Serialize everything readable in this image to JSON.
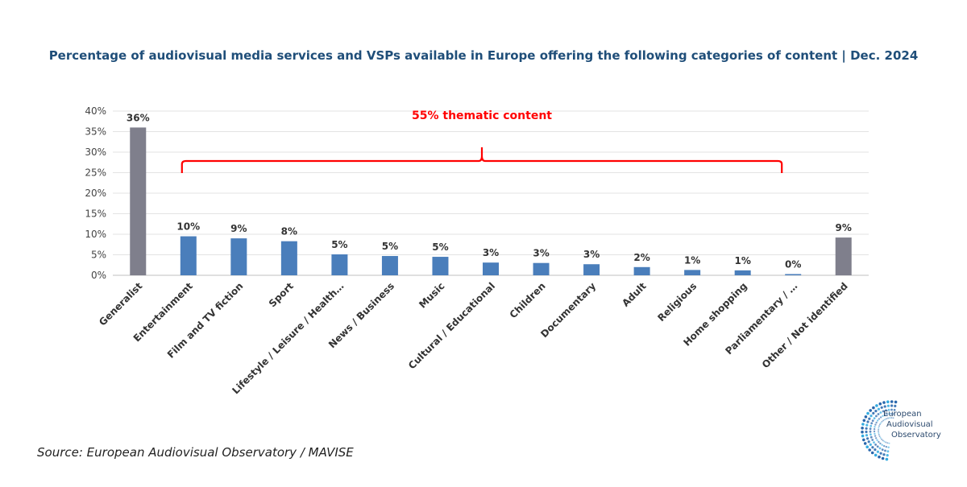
{
  "title": "Percentage of audiovisual media services and VSPs available in Europe offering the following categories of content | Dec. 2024",
  "source": "Source: European Audiovisual Observatory / MAVISE",
  "logo": {
    "line1": "European",
    "line2": "Audiovisual",
    "line3": "Observatory"
  },
  "colors": {
    "generalist": "#7f7f8c",
    "thematic": "#4a7ebb",
    "bracket": "#ff0000",
    "title": "#1f4e79"
  },
  "chart_data": {
    "type": "bar",
    "categories": [
      "Generalist",
      "Entertainment",
      "Film and TV fiction",
      "Sport",
      "Lifestyle / Leisure / Health…",
      "News / Business",
      "Music",
      "Cultural / Educational",
      "Children",
      "Documentary",
      "Adult",
      "Religious",
      "Home shopping",
      "Parliamentary / …",
      "Other / Not identified"
    ],
    "values": [
      36,
      9.5,
      9,
      8.3,
      5.1,
      4.7,
      4.5,
      3.1,
      3.0,
      2.7,
      2.0,
      1.3,
      1.2,
      0.3,
      9.2
    ],
    "data_labels": [
      "36%",
      "10%",
      "9%",
      "8%",
      "5%",
      "5%",
      "5%",
      "3%",
      "3%",
      "3%",
      "2%",
      "1%",
      "1%",
      "0%",
      "9%"
    ],
    "highlighted": [
      0,
      14
    ],
    "ylim": [
      0,
      40
    ],
    "yticks": [
      "0%",
      "5%",
      "10%",
      "15%",
      "20%",
      "25%",
      "30%",
      "35%",
      "40%"
    ],
    "grid": true,
    "annotation": {
      "text": "55% thematic content",
      "from_category": 1,
      "to_category": 13
    }
  }
}
